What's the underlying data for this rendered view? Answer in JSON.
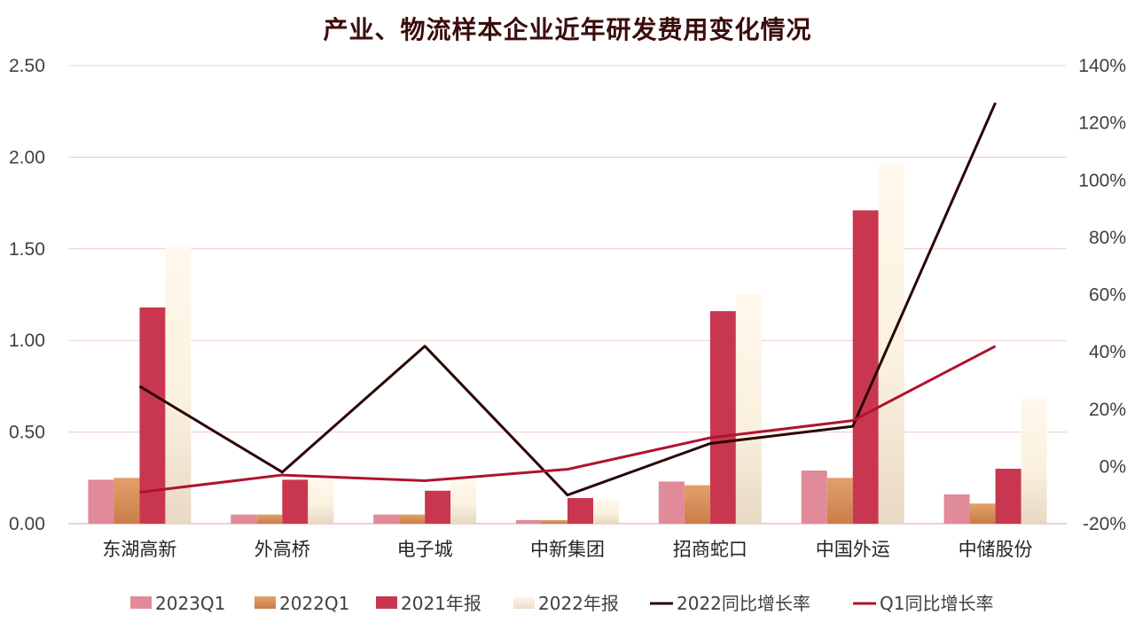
{
  "chart_data": {
    "type": "bar",
    "title": "产业、物流样本企业近年研发费用变化情况",
    "categories": [
      "东湖高新",
      "外高桥",
      "电子城",
      "中新集团",
      "招商蛇口",
      "中国外运",
      "中储股份"
    ],
    "y_left": {
      "min": 0,
      "max": 2.5,
      "ticks": [
        "0.00",
        "0.50",
        "1.00",
        "1.50",
        "2.00",
        "2.50"
      ]
    },
    "y_right": {
      "min": -20,
      "max": 140,
      "ticks": [
        "-20%",
        "0%",
        "20%",
        "40%",
        "60%",
        "80%",
        "100%",
        "120%",
        "140%"
      ]
    },
    "grid": true,
    "legend_position": "bottom",
    "series": [
      {
        "name": "2023Q1",
        "kind": "bar",
        "axis": "left",
        "color": "#e08a9a",
        "values": [
          0.24,
          0.05,
          0.05,
          0.02,
          0.23,
          0.29,
          0.16
        ]
      },
      {
        "name": "2022Q1",
        "kind": "bar",
        "axis": "left",
        "color": "#d9935f",
        "values": [
          0.25,
          0.05,
          0.05,
          0.02,
          0.21,
          0.25,
          0.11
        ]
      },
      {
        "name": "2021年报",
        "kind": "bar",
        "axis": "left",
        "color": "#c8374f",
        "values": [
          1.18,
          0.24,
          0.18,
          0.14,
          1.16,
          1.71,
          0.3
        ]
      },
      {
        "name": "2022年报",
        "kind": "bar",
        "axis": "left",
        "color": "#fbf1e0",
        "values": [
          1.51,
          0.24,
          0.24,
          0.13,
          1.25,
          1.96,
          0.68
        ]
      },
      {
        "name": "2022同比增长率",
        "kind": "line",
        "axis": "right",
        "color": "#2a0505",
        "values": [
          28,
          -2,
          42,
          -10,
          8,
          14,
          127
        ]
      },
      {
        "name": "Q1同比增长率",
        "kind": "line",
        "axis": "right",
        "color": "#b0132d",
        "values": [
          -9,
          -3,
          -5,
          -1,
          10,
          16,
          42
        ]
      }
    ]
  }
}
